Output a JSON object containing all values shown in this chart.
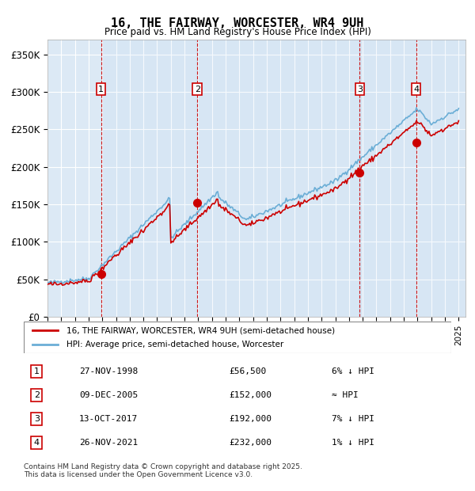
{
  "title": "16, THE FAIRWAY, WORCESTER, WR4 9UH",
  "subtitle": "Price paid vs. HM Land Registry's House Price Index (HPI)",
  "xlim": [
    1995.0,
    2025.5
  ],
  "ylim": [
    0,
    370000
  ],
  "yticks": [
    0,
    50000,
    100000,
    150000,
    200000,
    250000,
    300000,
    350000
  ],
  "ytick_labels": [
    "£0",
    "£50K",
    "£100K",
    "£150K",
    "£200K",
    "£250K",
    "£300K",
    "£350K"
  ],
  "background_color": "#dce9f5",
  "plot_bg_color": "#dce9f5",
  "hpi_color": "#6baed6",
  "price_color": "#cc0000",
  "sale_marker_color": "#cc0000",
  "vline_color": "#cc0000",
  "grid_color": "#ffffff",
  "sales": [
    {
      "year": 1998.9,
      "price": 56500,
      "label": "1"
    },
    {
      "year": 2005.93,
      "price": 152000,
      "label": "2"
    },
    {
      "year": 2017.78,
      "price": 192000,
      "label": "3"
    },
    {
      "year": 2021.9,
      "price": 232000,
      "label": "4"
    }
  ],
  "sale_box_color": "#ffffff",
  "sale_box_edge": "#cc0000",
  "legend_entries": [
    "16, THE FAIRWAY, WORCESTER, WR4 9UH (semi-detached house)",
    "HPI: Average price, semi-detached house, Worcester"
  ],
  "table_rows": [
    {
      "num": "1",
      "date": "27-NOV-1998",
      "price": "£56,500",
      "relation": "6% ↓ HPI"
    },
    {
      "num": "2",
      "date": "09-DEC-2005",
      "price": "£152,000",
      "relation": "≈ HPI"
    },
    {
      "num": "3",
      "date": "13-OCT-2017",
      "price": "£192,000",
      "relation": "7% ↓ HPI"
    },
    {
      "num": "4",
      "date": "26-NOV-2021",
      "price": "£232,000",
      "relation": "1% ↓ HPI"
    }
  ],
  "footnote": "Contains HM Land Registry data © Crown copyright and database right 2025.\nThis data is licensed under the Open Government Licence v3.0."
}
